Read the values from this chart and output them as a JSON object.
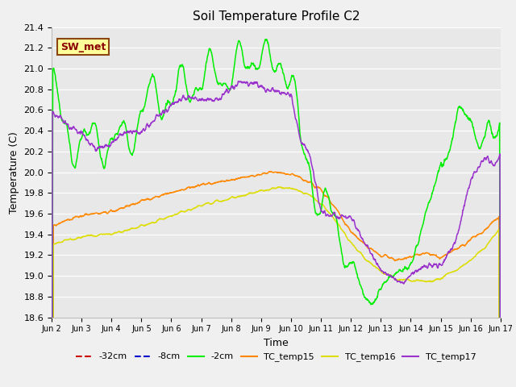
{
  "title": "Soil Temperature Profile C2",
  "xlabel": "Time",
  "ylabel": "Temperature (C)",
  "ylim": [
    18.6,
    21.4
  ],
  "yticks": [
    18.6,
    18.8,
    19.0,
    19.2,
    19.4,
    19.6,
    19.8,
    20.0,
    20.2,
    20.4,
    20.6,
    20.8,
    21.0,
    21.2,
    21.4
  ],
  "xtick_labels": [
    "Jun 2",
    "Jun 3",
    "Jun 4",
    "Jun 5",
    "Jun 6",
    "Jun 7",
    "Jun 8",
    "Jun 9",
    "Jun 10",
    "Jun 11",
    "Jun 12",
    "Jun 13",
    "Jun 14",
    "Jun 15",
    "Jun 16",
    "Jun 17"
  ],
  "bg_color": "#e8e8e8",
  "grid_color": "#ffffff",
  "annotation_text": "SW_met",
  "annotation_bg": "#ffff99",
  "annotation_border": "#8b4513",
  "annotation_text_color": "#8b0000",
  "colors": {
    "neg32cm": "#cc0000",
    "neg8cm": "#0000cc",
    "neg2cm": "#00ee00",
    "tc15": "#ff8800",
    "tc16": "#dddd00",
    "tc17": "#9933cc"
  },
  "legend_labels": [
    "-32cm",
    "-8cm",
    "-2cm",
    "TC_temp15",
    "TC_temp16",
    "TC_temp17"
  ]
}
